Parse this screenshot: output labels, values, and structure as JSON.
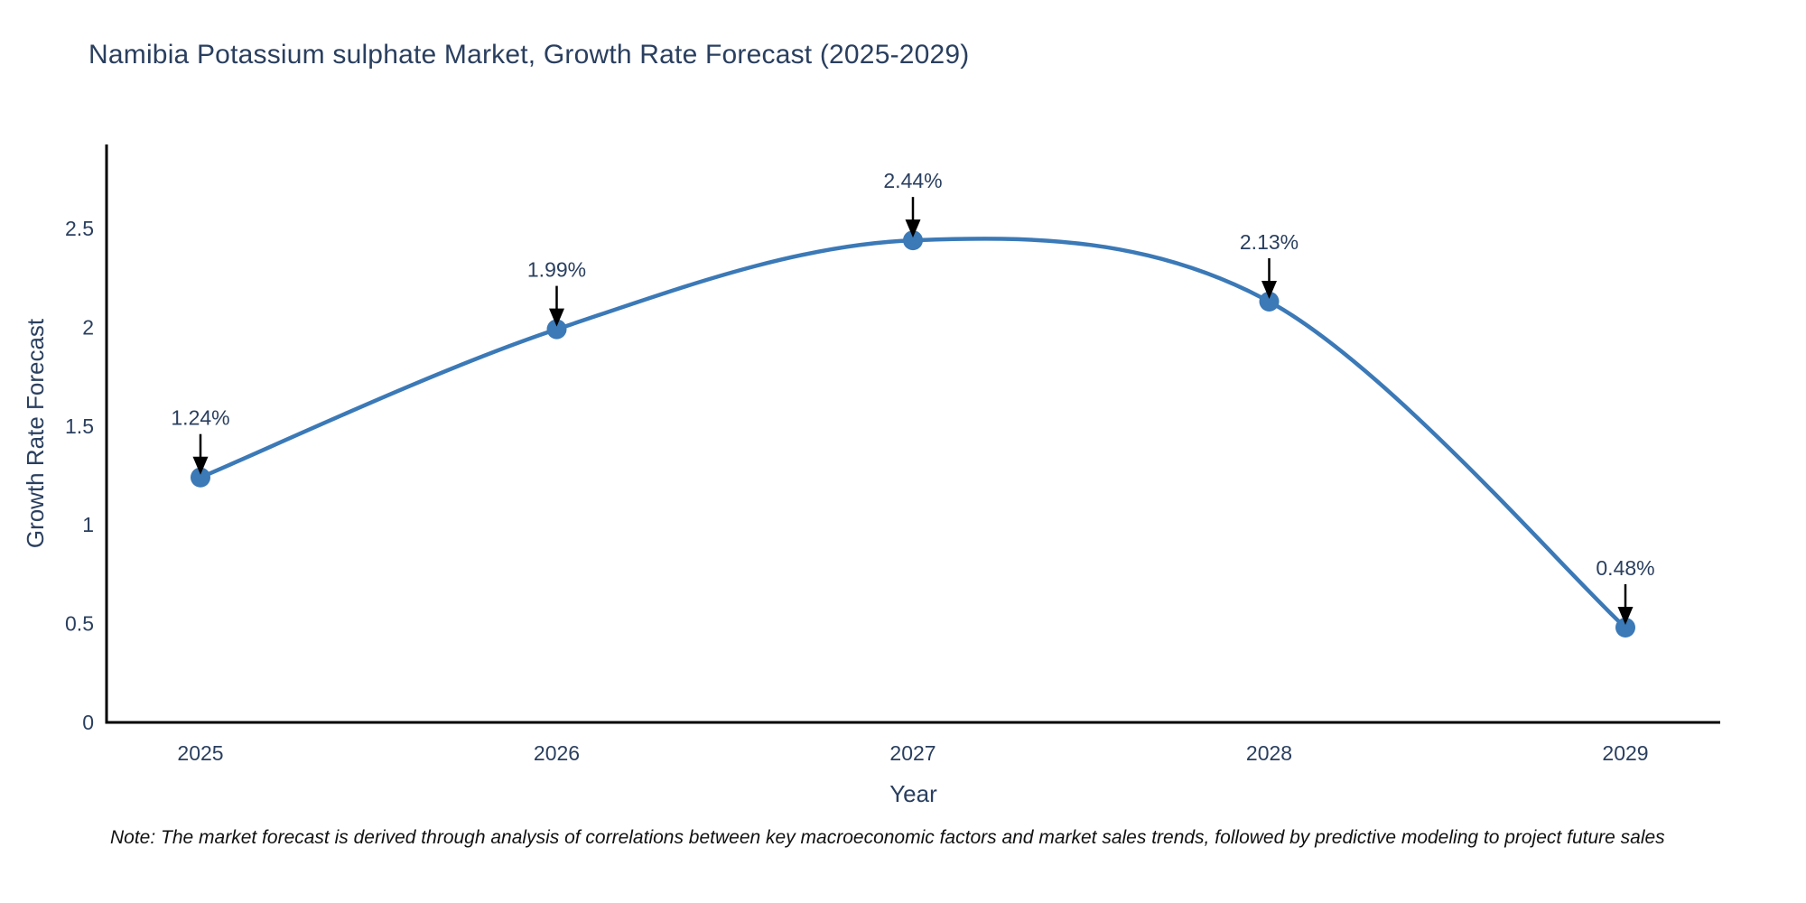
{
  "title": "Namibia Potassium sulphate Market, Growth Rate Forecast (2025-2029)",
  "note": "Note: The market forecast is derived through analysis of correlations between key macroeconomic factors and market sales trends, followed by predictive modeling to project future sales",
  "colors": {
    "line": "#3b79b7",
    "marker": "#3b79b7",
    "axis_line": "#000000",
    "text": "#2a3f5f",
    "annotation_arrow": "#000000",
    "background": "#ffffff"
  },
  "chart_data": {
    "type": "line",
    "title": "Namibia Potassium sulphate Market, Growth Rate Forecast (2025-2029)",
    "x": [
      "2025",
      "2026",
      "2027",
      "2028",
      "2029"
    ],
    "values": [
      1.24,
      1.99,
      2.44,
      2.13,
      0.48
    ],
    "point_labels": [
      "1.24%",
      "1.99%",
      "2.44%",
      "2.13%",
      "0.48%"
    ],
    "xlabel": "Year",
    "ylabel": "Growth Rate Forecast",
    "ylim": [
      0,
      2.93
    ],
    "yticks": [
      "0",
      "0.5",
      "1",
      "1.5",
      "2",
      "2.5"
    ],
    "ytick_values": [
      0,
      0.5,
      1,
      1.5,
      2,
      2.5
    ],
    "grid": false,
    "legend_position": "none",
    "line_shape": "spline",
    "annotations": "value labels with downward arrows above each data point"
  }
}
